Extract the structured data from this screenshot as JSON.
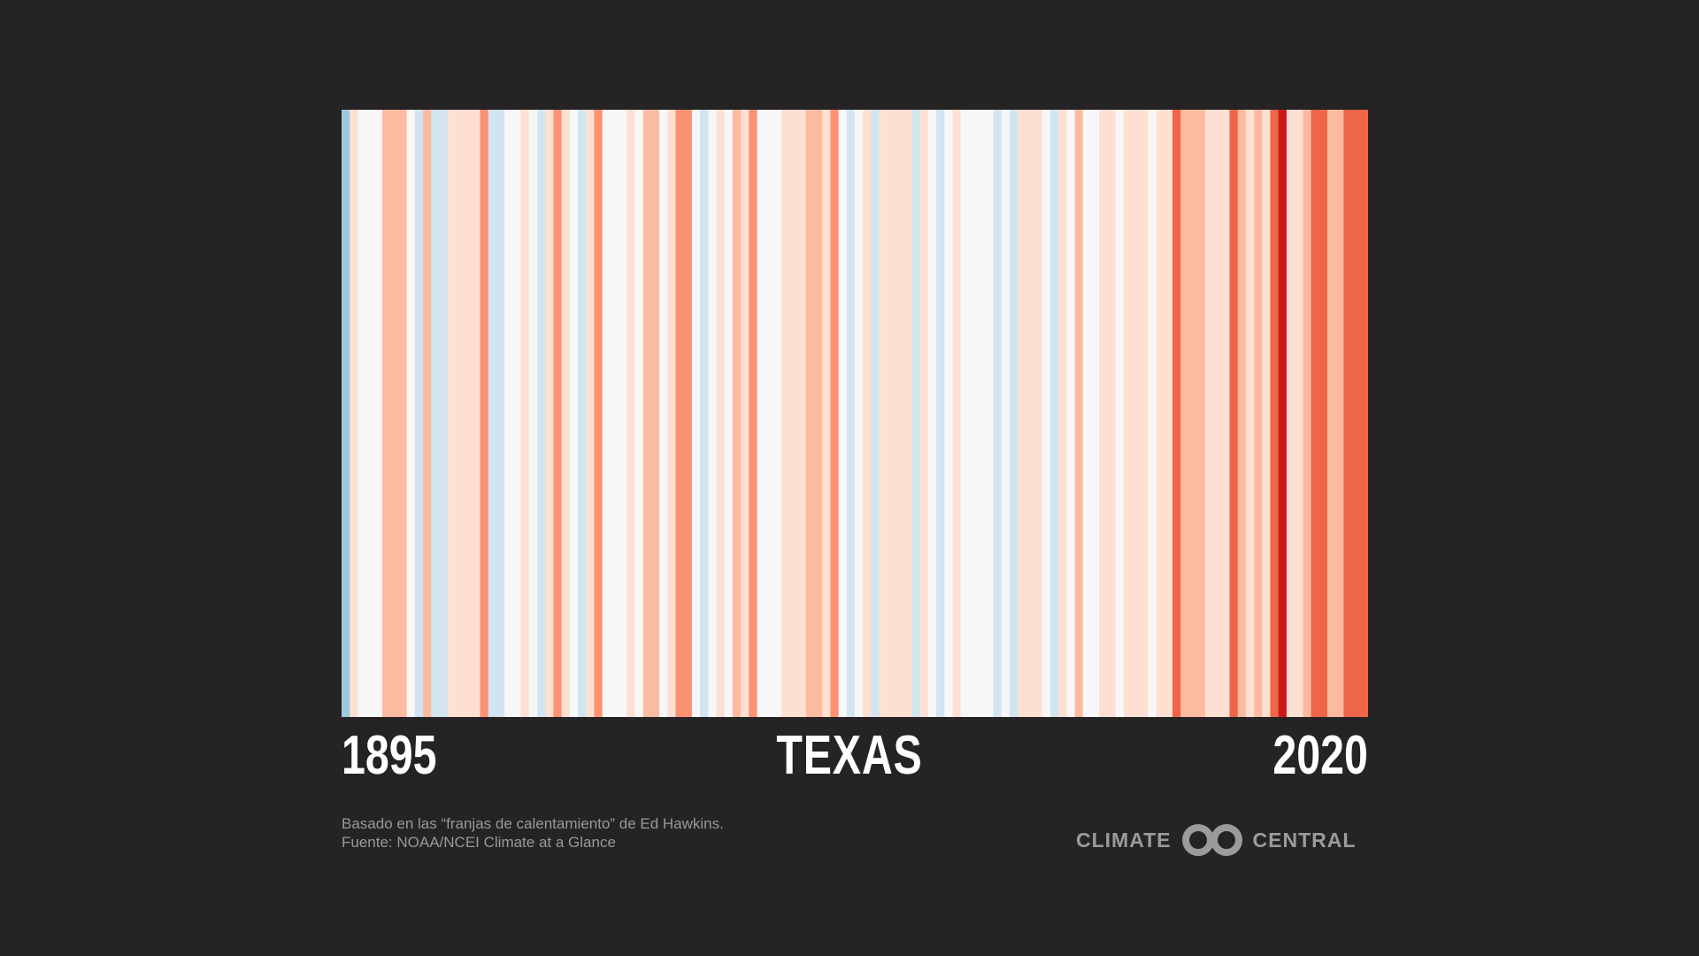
{
  "chart_data": {
    "type": "heatmap",
    "title": "TEXAS",
    "x_start": 1895,
    "x_end": 2020,
    "start_label": "1895",
    "end_label": "2020",
    "colors": [
      "#9ecae1",
      "#fee0d2",
      "#f7f7f7",
      "#f7f7f7",
      "#f7f7f7",
      "#fcbba1",
      "#fcbba1",
      "#fcbba1",
      "#f7f7f7",
      "#d1e5f0",
      "#fcbba1",
      "#d1e5f0",
      "#d1e5f0",
      "#fee0d2",
      "#fee0d2",
      "#fee0d2",
      "#fee0d2",
      "#fc9272",
      "#d1e5f0",
      "#d1e5f0",
      "#f7f7f7",
      "#f7f7f7",
      "#fee0d2",
      "#f7f7f7",
      "#d1e5f0",
      "#fee0d2",
      "#fc9272",
      "#fee0d2",
      "#f7f7f7",
      "#d1e5f0",
      "#fee0d2",
      "#fc9272",
      "#f7f7f7",
      "#f7f7f7",
      "#f7f7f7",
      "#fee0d2",
      "#f7f7f7",
      "#fcbba1",
      "#fcbba1",
      "#f7f7f7",
      "#fee0d2",
      "#fc9272",
      "#fc9272",
      "#f7f7f7",
      "#d1e5f0",
      "#f7f7f7",
      "#fee0d2",
      "#f7f7f7",
      "#fcbba1",
      "#fee0d2",
      "#fc9272",
      "#f7f7f7",
      "#f7f7f7",
      "#f7f7f7",
      "#fee0d2",
      "#fee0d2",
      "#fee0d2",
      "#fcbba1",
      "#fcbba1",
      "#fee0d2",
      "#fc9272",
      "#f7f7f7",
      "#d1e5f0",
      "#f7f7f7",
      "#fee0d2",
      "#d1e5f0",
      "#fee0d2",
      "#fee0d2",
      "#fee0d2",
      "#fee0d2",
      "#d1e5f0",
      "#fee0d2",
      "#f7f7f7",
      "#d1e5f0",
      "#f7f7f7",
      "#fee0d2",
      "#f7f7f7",
      "#f7f7f7",
      "#f7f7f7",
      "#f7f7f7",
      "#d1e5f0",
      "#f7f7f7",
      "#d1e5f0",
      "#fee0d2",
      "#fee0d2",
      "#fee0d2",
      "#f7f7f7",
      "#d1e5f0",
      "#fee0d2",
      "#f7f7f7",
      "#fcbba1",
      "#f7f7f7",
      "#f7f7f7",
      "#fee0d2",
      "#fee0d2",
      "#f7f7f7",
      "#fee0d2",
      "#fee0d2",
      "#fee0d2",
      "#f7f7f7",
      "#fee0d2",
      "#fee0d2",
      "#ef6548",
      "#fcbba1",
      "#fcbba1",
      "#fcbba1",
      "#fee0d2",
      "#fee0d2",
      "#fee0d2",
      "#ef6548",
      "#fcbba1",
      "#fee0d2",
      "#fcbba1",
      "#fee0d2",
      "#ef6548",
      "#cb181d",
      "#fee0d2",
      "#fee0d2",
      "#fcbba1",
      "#ef6548",
      "#ef6548",
      "#fcbba1",
      "#fcbba1",
      "#ef6548",
      "#ef6548",
      "#ef6548"
    ]
  },
  "labels": {
    "start_year": "1895",
    "title": "TEXAS",
    "end_year": "2020"
  },
  "credits": {
    "line1": "Basado en las “franjas de calentamiento” de Ed Hawkins.",
    "line2": "Fuente: NOAA/NCEI Climate at a Glance"
  },
  "logo": {
    "left_text": "CLIMATE",
    "right_text": "CENTRAL",
    "icon": "interlocking-rings-icon"
  }
}
